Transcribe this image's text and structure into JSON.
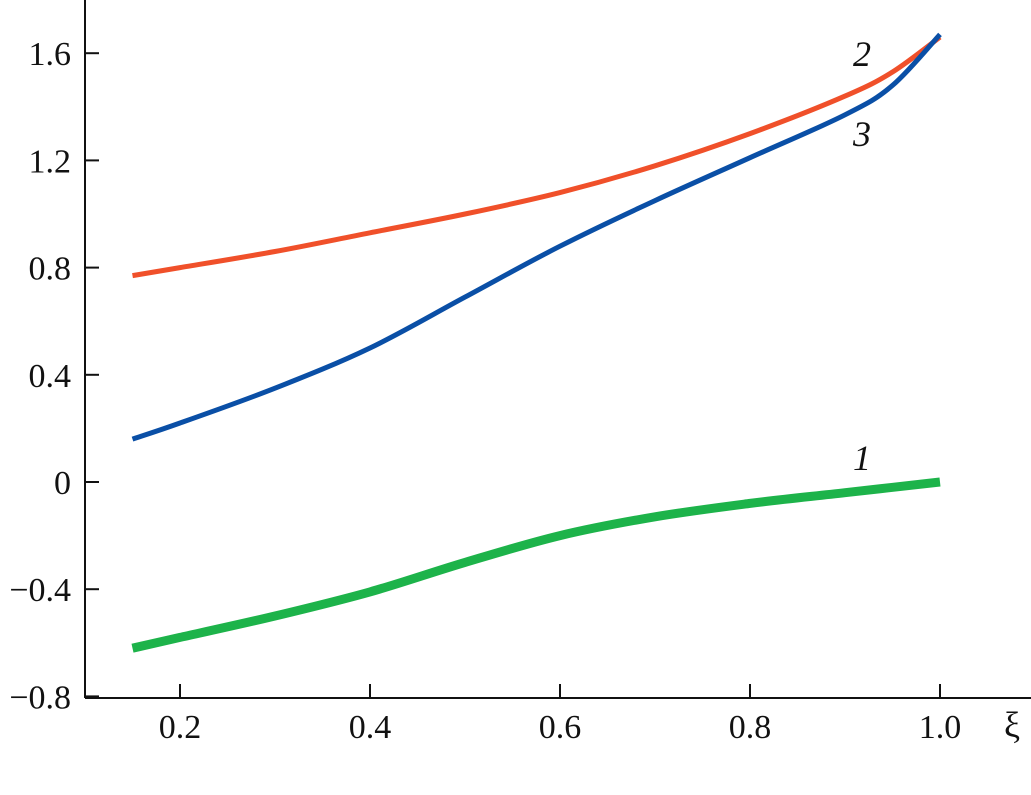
{
  "chart_data": {
    "type": "line",
    "title": "",
    "xlabel": "ξ",
    "ylabel": "",
    "xlim": [
      0.1,
      1.1
    ],
    "ylim": [
      -0.8,
      1.8
    ],
    "grid": false,
    "x_ticks": [
      "0.2",
      "0.4",
      "0.6",
      "0.8",
      "1.0"
    ],
    "y_ticks": [
      "−0.8",
      "−0.4",
      "0",
      "0.4",
      "0.8",
      "1.2",
      "1.6"
    ],
    "series": [
      {
        "name": "1",
        "color": "#1db34a",
        "x": [
          0.15,
          0.2,
          0.3,
          0.4,
          0.5,
          0.6,
          0.7,
          0.8,
          0.9,
          1.0
        ],
        "y": [
          -0.62,
          -0.58,
          -0.5,
          -0.41,
          -0.3,
          -0.2,
          -0.13,
          -0.08,
          -0.04,
          0.0
        ]
      },
      {
        "name": "2",
        "color": "#f0502a",
        "x": [
          0.15,
          0.2,
          0.3,
          0.4,
          0.5,
          0.6,
          0.7,
          0.8,
          0.9,
          0.95,
          1.0
        ],
        "y": [
          0.77,
          0.8,
          0.86,
          0.93,
          1.0,
          1.08,
          1.18,
          1.3,
          1.44,
          1.53,
          1.66
        ]
      },
      {
        "name": "3",
        "color": "#0a4fa6",
        "x": [
          0.15,
          0.2,
          0.3,
          0.4,
          0.5,
          0.6,
          0.7,
          0.8,
          0.9,
          0.95,
          1.0
        ],
        "y": [
          0.16,
          0.22,
          0.35,
          0.5,
          0.69,
          0.88,
          1.05,
          1.21,
          1.37,
          1.48,
          1.67
        ]
      }
    ]
  }
}
